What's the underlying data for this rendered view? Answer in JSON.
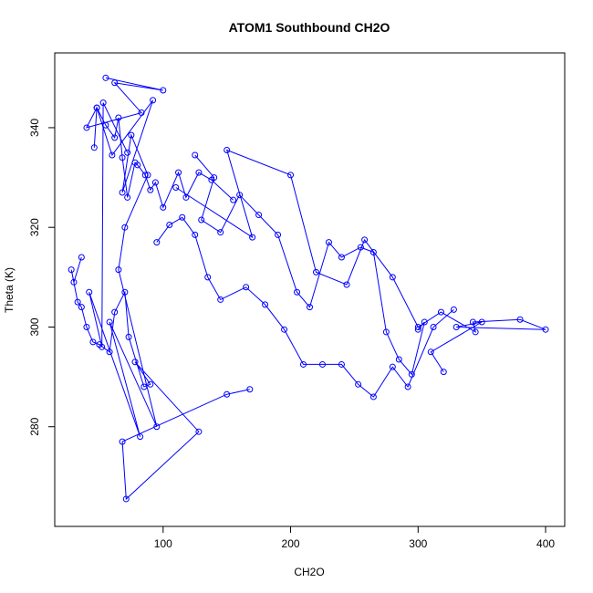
{
  "chart_data": {
    "type": "scatter",
    "mode": "lines+points",
    "title": "ATOM1 Southbound CH2O",
    "xlabel": "CH2O",
    "ylabel": "Theta (K)",
    "xlim": [
      15,
      415
    ],
    "ylim": [
      260,
      355
    ],
    "xticks": [
      100,
      200,
      300,
      400
    ],
    "yticks": [
      280,
      300,
      320,
      340
    ],
    "grid": false,
    "legend": "none",
    "colors": {
      "series": "#0000ff",
      "axis": "#000000",
      "background": "#ffffff"
    },
    "series": [
      {
        "x": [
          55,
          100,
          62,
          83,
          40,
          48,
          60,
          92,
          68,
          75,
          88,
          70,
          65,
          95,
          58,
          82,
          42,
          52,
          53,
          72
        ],
        "y": [
          350.0,
          347.5,
          349.0,
          343.0,
          340.0,
          344.0,
          334.5,
          345.5,
          327.0,
          338.5,
          330.5,
          320.0,
          311.5,
          280.0,
          301.0,
          278.0,
          307.0,
          296.0,
          345.0,
          335.0
        ]
      },
      {
        "x": [
          36,
          30,
          28,
          33,
          36,
          40,
          45,
          50,
          58,
          62,
          70,
          73,
          85,
          90,
          78,
          128,
          71,
          68,
          150,
          168
        ],
        "y": [
          314.0,
          309.0,
          311.5,
          305.0,
          304.0,
          300.0,
          297.0,
          296.5,
          295.0,
          303.0,
          307.0,
          298.0,
          288.0,
          288.5,
          293.0,
          279.0,
          265.5,
          277.0,
          286.5,
          287.5
        ]
      },
      {
        "x": [
          110,
          170,
          150,
          200,
          220,
          244,
          258,
          280,
          300,
          318,
          345,
          343,
          380,
          400,
          330,
          350,
          310,
          320
        ],
        "y": [
          328.0,
          318.0,
          335.5,
          330.5,
          311.0,
          308.5,
          317.5,
          310.0,
          300.0,
          303.0,
          299.0,
          301.0,
          301.5,
          299.5,
          300.0,
          301.0,
          295.0,
          291.0
        ]
      },
      {
        "x": [
          125,
          140,
          130,
          145,
          160,
          175,
          190,
          205,
          215,
          230,
          240,
          255,
          265,
          275,
          285,
          295,
          305,
          300
        ],
        "y": [
          334.5,
          330.0,
          321.5,
          319.0,
          326.5,
          322.5,
          318.5,
          307.0,
          304.0,
          317.0,
          314.0,
          316.0,
          315.0,
          299.0,
          293.5,
          290.5,
          301.0,
          299.5
        ]
      },
      {
        "x": [
          95,
          105,
          115,
          125,
          135,
          145,
          165,
          180,
          195,
          210,
          225,
          240,
          253,
          265,
          280,
          292,
          312,
          328
        ],
        "y": [
          317.0,
          320.5,
          322.0,
          318.5,
          310.0,
          305.5,
          308.0,
          304.5,
          299.5,
          292.5,
          292.5,
          292.5,
          288.5,
          286.0,
          292.0,
          288.0,
          300.0,
          303.5
        ]
      },
      {
        "x": [
          46,
          48,
          55,
          62,
          65,
          68,
          72,
          78,
          80,
          86,
          90,
          94,
          100,
          112,
          118,
          128,
          138,
          155
        ],
        "y": [
          336.0,
          344.0,
          340.5,
          338.0,
          342.0,
          334.0,
          326.0,
          333.0,
          332.5,
          330.5,
          327.5,
          329.0,
          324.0,
          331.0,
          326.0,
          331.0,
          329.5,
          325.5
        ]
      }
    ]
  }
}
